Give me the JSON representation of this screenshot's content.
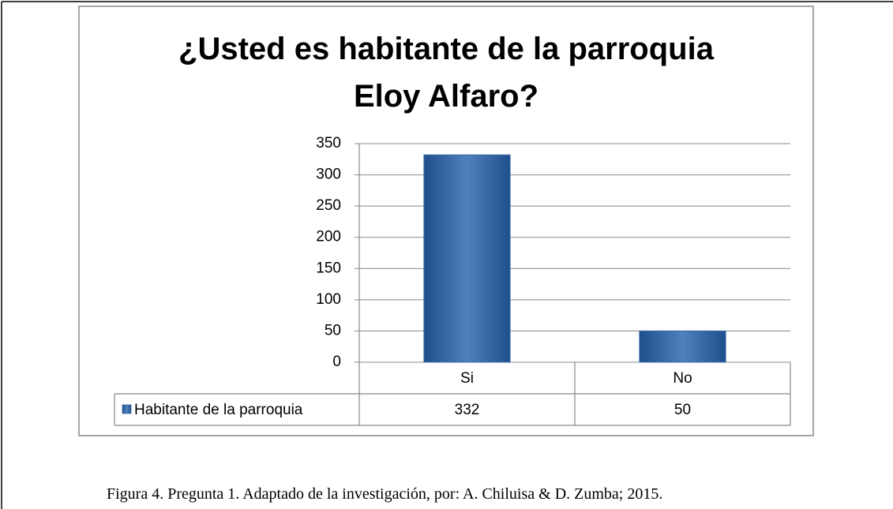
{
  "chart_data": {
    "type": "bar",
    "title": "¿Usted es habitante de la parroquia Eloy Alfaro?",
    "categories": [
      "Si",
      "No"
    ],
    "series": [
      {
        "name": "Habitante de la parroquia",
        "color": "#4f81bd",
        "values": [
          332,
          50
        ]
      }
    ],
    "ylim": [
      0,
      350
    ],
    "yticks": [
      0,
      50,
      100,
      150,
      200,
      250,
      300,
      350
    ],
    "grid": true,
    "data_table": true
  },
  "caption": "Figura 4. Pregunta 1. Adaptado de la investigación, por: A. Chiluisa & D. Zumba; 2015."
}
